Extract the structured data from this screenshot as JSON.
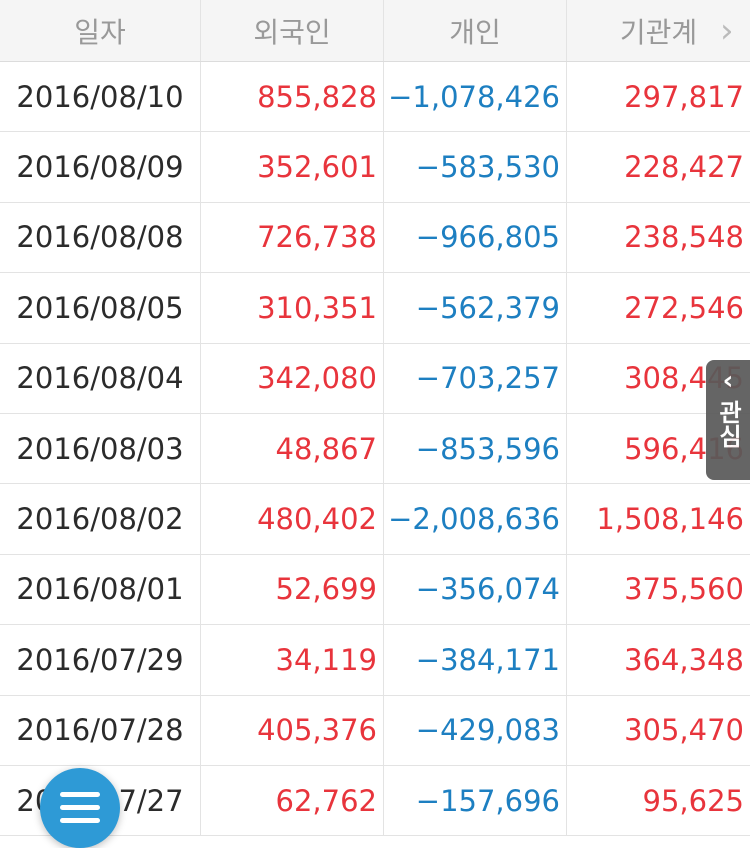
{
  "headers": [
    "일자",
    "외국인",
    "개인",
    "기관계"
  ],
  "header_more_icon": "chevron-right-icon",
  "rows": [
    {
      "date": "2016/08/10",
      "foreign": "855,828",
      "individual": "−1,078,426",
      "institution": "297,817"
    },
    {
      "date": "2016/08/09",
      "foreign": "352,601",
      "individual": "−583,530",
      "institution": "228,427"
    },
    {
      "date": "2016/08/08",
      "foreign": "726,738",
      "individual": "−966,805",
      "institution": "238,548"
    },
    {
      "date": "2016/08/05",
      "foreign": "310,351",
      "individual": "−562,379",
      "institution": "272,546"
    },
    {
      "date": "2016/08/04",
      "foreign": "342,080",
      "individual": "−703,257",
      "institution": "308,445"
    },
    {
      "date": "2016/08/03",
      "foreign": "48,867",
      "individual": "−853,596",
      "institution": "596,416"
    },
    {
      "date": "2016/08/02",
      "foreign": "480,402",
      "individual": "−2,008,636",
      "institution": "1,508,146"
    },
    {
      "date": "2016/08/01",
      "foreign": "52,699",
      "individual": "−356,074",
      "institution": "375,560"
    },
    {
      "date": "2016/07/29",
      "foreign": "34,119",
      "individual": "−384,171",
      "institution": "364,348"
    },
    {
      "date": "2016/07/28",
      "foreign": "405,376",
      "individual": "−429,083",
      "institution": "305,470"
    },
    {
      "date": "2016/07/27",
      "foreign": "62,762",
      "individual": "−157,696",
      "institution": "95,625"
    }
  ],
  "side_tab": {
    "label": "관심",
    "icon": "chevron-left-icon"
  },
  "menu_fab": {
    "icon": "menu-icon"
  },
  "colors": {
    "positive": "#e8343c",
    "negative": "#1d7fc1",
    "header_bg": "#f5f5f5",
    "fab": "#2e9ad6"
  }
}
